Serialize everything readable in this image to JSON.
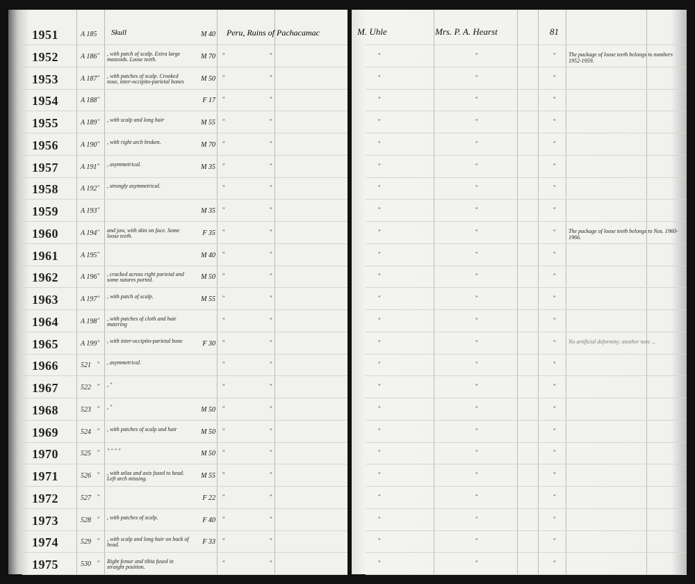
{
  "ledger": {
    "first_entry": {
      "object": "Skull",
      "locality": "Peru, Ruins of Pachacamac",
      "collector": "M. Uhle",
      "donor": "Mrs. P. A. Hearst",
      "accession": "81"
    },
    "ditto": "\"",
    "rows": [
      {
        "num": "1951",
        "cat": "A 185",
        "desc": "",
        "sex": "M 40"
      },
      {
        "num": "1952",
        "cat": "A 186",
        "desc": ", with patch of scalp. Extra large mastoids. Loose teeth.",
        "sex": "M 70"
      },
      {
        "num": "1953",
        "cat": "A 187",
        "desc": ", with patches of scalp. Crooked nose, inter-occipito-parietal bones",
        "sex": "M 50"
      },
      {
        "num": "1954",
        "cat": "A 188",
        "desc": "",
        "sex": "F 17"
      },
      {
        "num": "1955",
        "cat": "A 189",
        "desc": ", with scalp and long hair",
        "sex": "M 55"
      },
      {
        "num": "1956",
        "cat": "A 190",
        "desc": ", with right arch broken.",
        "sex": "M 70"
      },
      {
        "num": "1957",
        "cat": "A 191",
        "desc": ", asymmetrical.",
        "sex": "M 35"
      },
      {
        "num": "1958",
        "cat": "A 192",
        "desc": ", strongly asymmetrical.",
        "sex": ""
      },
      {
        "num": "1959",
        "cat": "A 193",
        "desc": "",
        "sex": "M 35"
      },
      {
        "num": "1960",
        "cat": "A 194",
        "desc": "and jaw, with skin on face. Some loose teeth.",
        "sex": "F 35"
      },
      {
        "num": "1961",
        "cat": "A 195",
        "desc": "",
        "sex": "M 40"
      },
      {
        "num": "1962",
        "cat": "A 196",
        "desc": ", cracked across right parietal and some sutures parted.",
        "sex": "M 50"
      },
      {
        "num": "1963",
        "cat": "A 197",
        "desc": ", with patch of scalp.",
        "sex": "M 55"
      },
      {
        "num": "1964",
        "cat": "A 198",
        "desc": ", with patches of cloth and hair matering",
        "sex": ""
      },
      {
        "num": "1965",
        "cat": "A 199",
        "desc": ", with inter-occipito-parietal bone",
        "sex": "F 30"
      },
      {
        "num": "1966",
        "cat": "521",
        "desc": ", asymmetrical.",
        "sex": ""
      },
      {
        "num": "1967",
        "cat": "522",
        "desc": ",        \"",
        "sex": ""
      },
      {
        "num": "1968",
        "cat": "523",
        "desc": ",        \"",
        "sex": "M 50"
      },
      {
        "num": "1969",
        "cat": "524",
        "desc": ", with patches of scalp and hair",
        "sex": "M 50"
      },
      {
        "num": "1970",
        "cat": "525",
        "desc": "  \"   \"   \"   \"",
        "sex": "M 50"
      },
      {
        "num": "1971",
        "cat": "526",
        "desc": ", with atlas and axis fused to head. Left arch missing.",
        "sex": "M 55"
      },
      {
        "num": "1972",
        "cat": "527",
        "desc": "",
        "sex": "F 22"
      },
      {
        "num": "1973",
        "cat": "528",
        "desc": ", with patches of scalp.",
        "sex": "F 40"
      },
      {
        "num": "1974",
        "cat": "529",
        "desc": ", with scalp and long hair on back of head.",
        "sex": "F 33"
      },
      {
        "num": "1975",
        "cat": "530",
        "desc": "Right femur and tibia fused in straight position.",
        "sex": ""
      }
    ],
    "notes": [
      {
        "row": 1,
        "text": "The package of loose teeth belongs to numbers 1952-1959.",
        "faint": false
      },
      {
        "row": 9,
        "text": "The package of loose teeth belongs to Nos. 1960-1966.",
        "faint": false
      },
      {
        "row": 14,
        "text": "No artificial deformity; another note ...",
        "faint": true
      }
    ]
  }
}
